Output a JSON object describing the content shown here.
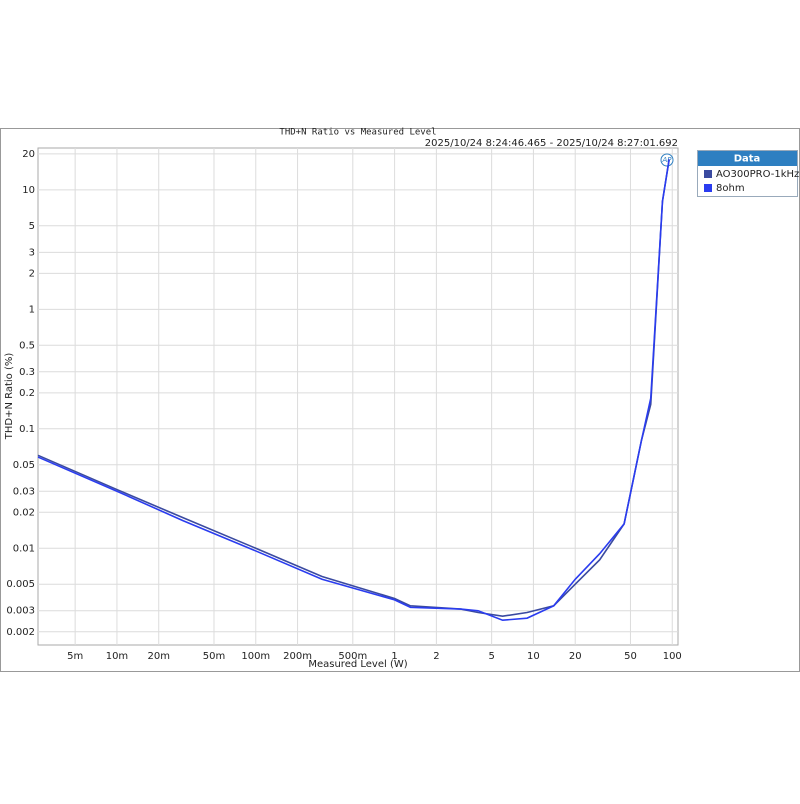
{
  "chart_data": {
    "type": "line",
    "title": "THD+N Ratio vs Measured Level",
    "timestamp": "2025/10/24 8:24:46.465 -   2025/10/24 8:27:01.692",
    "logo": "AP",
    "legend_title": "Data",
    "x_label": "Measured Level (W)",
    "y_label": "THD+N Ratio (%)",
    "x_log": true,
    "y_log": true,
    "grid": true,
    "legend": "right",
    "xlim": [
      0.0027,
      110
    ],
    "ylim": [
      0.00155,
      22.4
    ],
    "xticks": [
      {
        "value": 0.005,
        "label": "5m"
      },
      {
        "value": 0.01,
        "label": "10m"
      },
      {
        "value": 0.02,
        "label": "20m"
      },
      {
        "value": 0.05,
        "label": "50m"
      },
      {
        "value": 0.1,
        "label": "100m"
      },
      {
        "value": 0.2,
        "label": "200m"
      },
      {
        "value": 0.5,
        "label": "500m"
      },
      1,
      2,
      5,
      10,
      20,
      50,
      100
    ],
    "yticks": [
      20,
      10,
      5,
      3,
      2,
      1,
      0.5,
      0.3,
      0.2,
      0.1,
      0.05,
      0.03,
      0.02,
      0.01,
      0.005,
      0.003,
      0.002
    ],
    "x": [
      0.0027,
      0.01,
      0.03,
      0.1,
      0.3,
      1,
      1.3,
      3,
      4,
      6,
      9,
      14,
      20,
      30,
      45,
      60,
      70,
      85,
      95
    ],
    "series": [
      {
        "name": "AO300PRO-1kHz",
        "color": "#3a4aa0",
        "values": [
          0.06,
          0.031,
          0.018,
          0.01,
          0.0058,
          0.0038,
          0.0033,
          0.0031,
          0.0029,
          0.0027,
          0.0029,
          0.0033,
          0.005,
          0.008,
          0.016,
          0.08,
          0.16,
          8,
          18
        ]
      },
      {
        "name": "8ohm",
        "color": "#2a3cf0",
        "values": [
          0.058,
          0.03,
          0.017,
          0.0095,
          0.0055,
          0.0037,
          0.0032,
          0.0031,
          0.003,
          0.0025,
          0.0026,
          0.0033,
          0.0055,
          0.009,
          0.016,
          0.08,
          0.18,
          8,
          18
        ]
      }
    ]
  }
}
